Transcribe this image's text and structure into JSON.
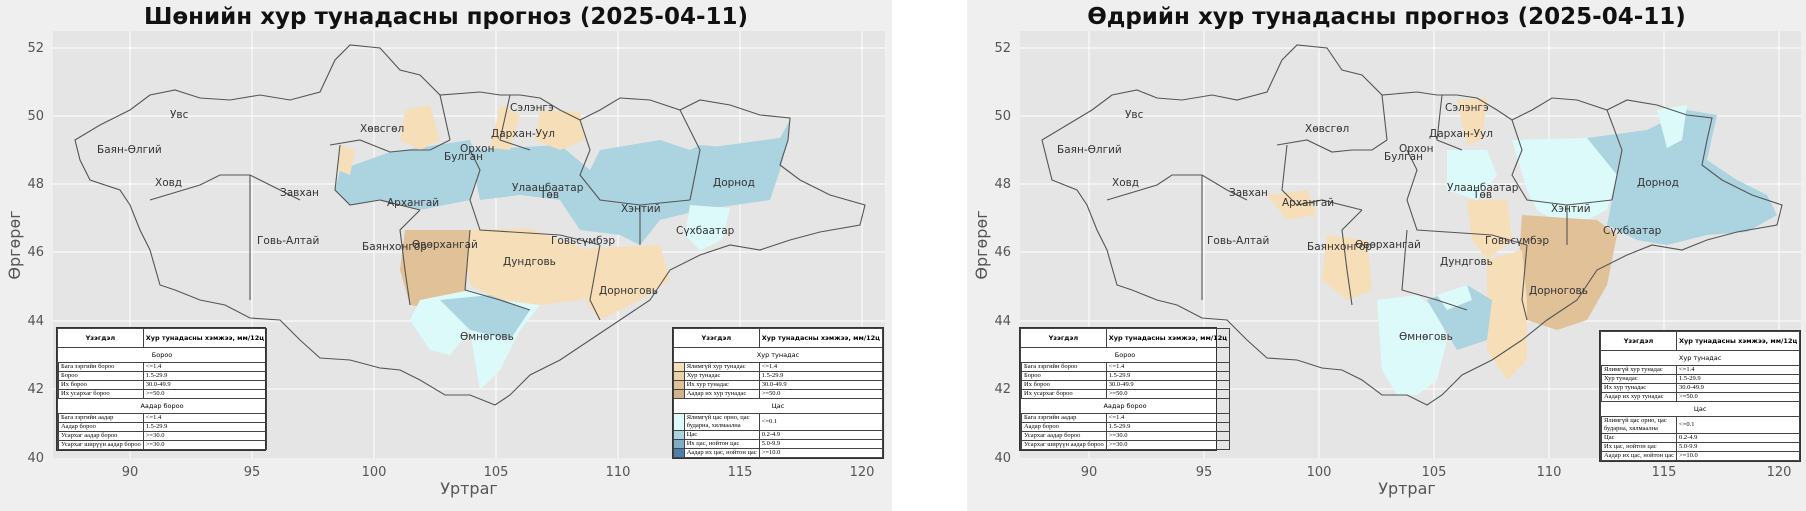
{
  "panels": [
    {
      "title": "Шөнийн хур тунадасны прогноз (2025-04-11)",
      "ylabel": "Өргөрөг",
      "xlabel": "Уртраг",
      "xticks": [
        "90",
        "95",
        "100",
        "105",
        "110",
        "115",
        "120"
      ],
      "yticks": [
        "52",
        "50",
        "48",
        "46",
        "44",
        "42",
        "40"
      ]
    },
    {
      "title": "Өдрийн хур тунадасны прогноз (2025-04-11)",
      "ylabel": "Өргөрөг",
      "xlabel": "Уртраг",
      "xticks": [
        "90",
        "95",
        "100",
        "105",
        "110",
        "115",
        "120"
      ],
      "yticks": [
        "52",
        "50",
        "48",
        "46",
        "44",
        "42",
        "40"
      ]
    }
  ],
  "regions": [
    "Увс",
    "Баян-Өлгий",
    "Ховд",
    "Завхан",
    "Говь-Алтай",
    "Хөвсгөл",
    "Архангай",
    "Баянхонгор",
    "Өвөрхангай",
    "Булган",
    "Орхон",
    "Сэлэнгэ",
    "Дархан-Уул",
    "Улаанбаатар",
    "Төв",
    "Хэнтий",
    "Дорнод",
    "Сүхбаатар",
    "Говьсүмбэр",
    "Дундговь",
    "Дорноговь",
    "Өмнөговь"
  ],
  "legend_left": {
    "col1": "Үзэгдэл",
    "col2": "Хур тунадасны хэмжээ, мм/12ц",
    "rain_title": "Бороо",
    "rain": [
      {
        "label": "Бага зэргийн бороо",
        "range": "<=1.4",
        "color": "#a6dc91"
      },
      {
        "label": "Бороо",
        "range": "1.5-29.9",
        "color": "#77c063"
      },
      {
        "label": "Их бороо",
        "range": "30.0-49.9",
        "color": "#4f9a3c"
      },
      {
        "label": "Их усархаг бороо",
        "range": ">=50.0",
        "color": "#2f7a22"
      }
    ],
    "hail_title": "Аадар бороо",
    "hail": [
      {
        "label": "Бага зэргийн аадар",
        "range": "<=1.4",
        "color": "#f4b3c4"
      },
      {
        "label": "Аадар бороо",
        "range": "1.5-29.9",
        "color": "#ee86a8"
      },
      {
        "label": "Усархаг аадар бороо",
        "range": ">=30.0",
        "color": "#d64596"
      },
      {
        "label": "Усархаг ширүүн аадар бороо",
        "range": ">=30.0",
        "color": "#b0126e"
      }
    ]
  },
  "legend_right": {
    "col1": "Үзэгдэл",
    "col2": "Хур тунадасны хэмжээ, мм/12ц",
    "mix_title": "Хур тунадас",
    "mix": [
      {
        "label": "Ялимгүй хур тунадас",
        "range": "<=1.4",
        "color": "#f6dfb8"
      },
      {
        "label": "Хур тунадас",
        "range": "1.5-29.9",
        "color": "#ecd0a6"
      },
      {
        "label": "Их хур тунадас",
        "range": "30.0-49.9",
        "color": "#e0c198"
      },
      {
        "label": "Аадар их хур тунадас",
        "range": ">=50.0",
        "color": "#d3b289"
      }
    ],
    "snow_title": "Цас",
    "snow": [
      {
        "label": "Ялимгүй цас орно, цас бударна, хялмаална",
        "range": "<=0.1",
        "color": "#dcfafa"
      },
      {
        "label": "Цас",
        "range": "0.2-4.9",
        "color": "#abd3e0"
      },
      {
        "label": "Их цас, нойтон цас",
        "range": "5.0-9.9",
        "color": "#7fadc8"
      },
      {
        "label": "Аадар их цас, нойтон цас",
        "range": ">=10.0",
        "color": "#4a7fb0"
      }
    ]
  },
  "colors": {
    "background": "#e5e5e5",
    "grid": "#ffffff",
    "outline": "#555555",
    "snow_light": "#dcfafa",
    "snow": "#abd3e0",
    "mix_light": "#f6dfb8",
    "mix": "#e0c198"
  }
}
